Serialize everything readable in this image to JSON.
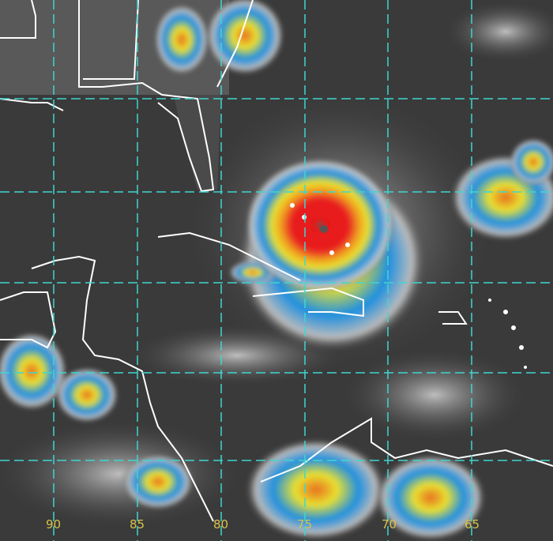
{
  "image": {
    "kind": "infrared satellite image",
    "colors": {
      "background": "#3a3a3a",
      "grid": "#3fd6d0",
      "coast": "#ffffff",
      "cold_cloud": "#1e90e0",
      "colder": "#e8e030",
      "coldest": "#e82020",
      "cloud_white": "#d8d8d8"
    },
    "longitude_labels": [
      "90",
      "85",
      "80",
      "75",
      "70",
      "65"
    ]
  }
}
